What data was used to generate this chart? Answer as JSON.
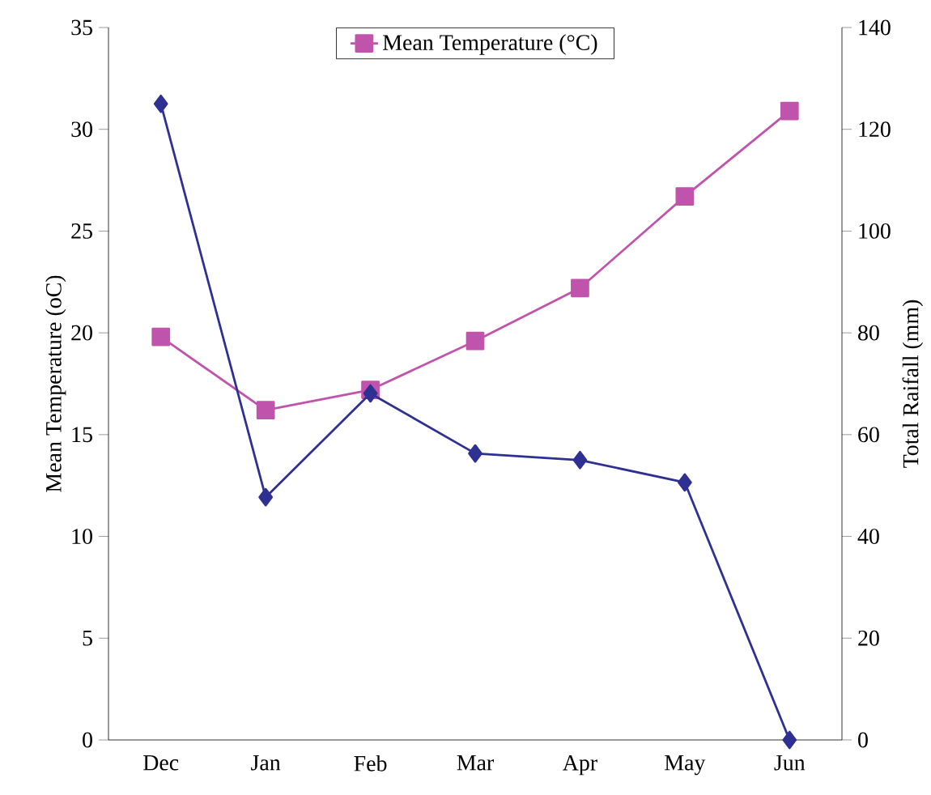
{
  "chart_data": {
    "type": "line",
    "ylabel": "Mean Temperature (oC)",
    "y2label": "Total Raifall (mm)",
    "categories": [
      "Dec",
      "Jan",
      "Feb",
      "Mar",
      "Apr",
      "May",
      "Jun"
    ],
    "series": [
      {
        "name": "Mean Temperature (°C)",
        "color": "#c054ac",
        "marker": "square",
        "axis": "y",
        "values": [
          19.8,
          16.2,
          17.2,
          19.6,
          22.2,
          26.7,
          30.9
        ]
      },
      {
        "color": "#2e3192",
        "marker": "diamond",
        "axis": "y2",
        "values": [
          125,
          47.7,
          68.1,
          56.3,
          55,
          50.6,
          0
        ]
      }
    ],
    "ylim": [
      0,
      35
    ],
    "yticks": [
      0,
      5,
      10,
      15,
      20,
      25,
      30,
      35
    ],
    "y2lim": [
      0,
      140
    ],
    "y2ticks": [
      0,
      20,
      40,
      60,
      80,
      100,
      120,
      140
    ],
    "legend": "top",
    "line_style": "solid"
  }
}
